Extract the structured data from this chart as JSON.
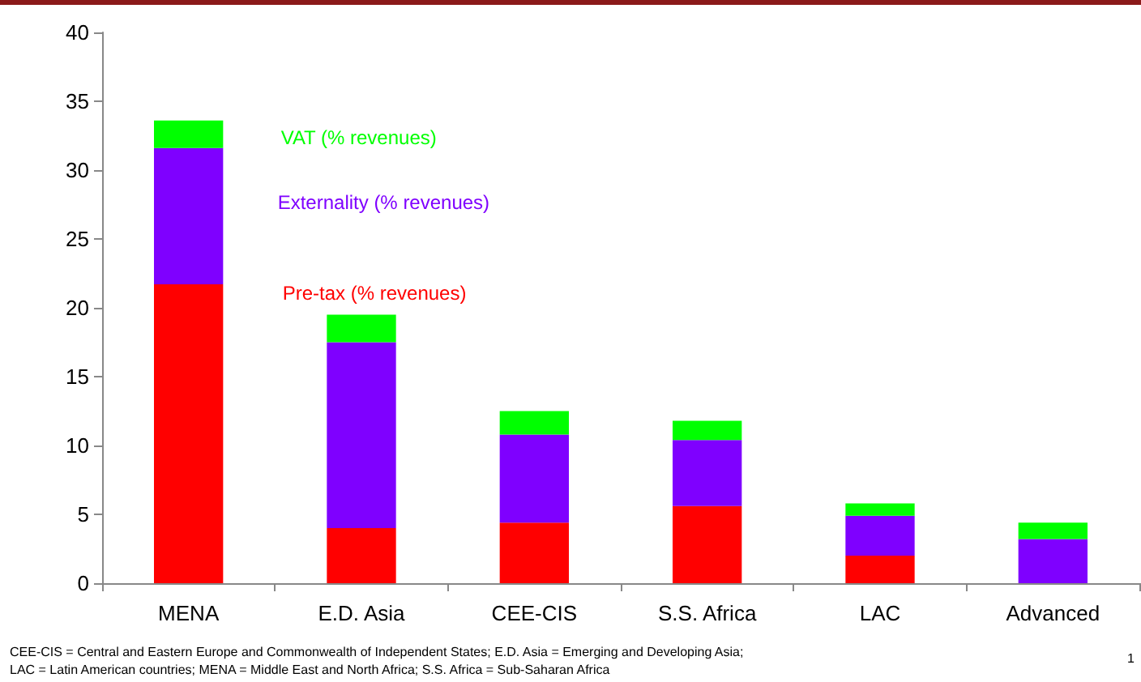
{
  "chart_data": {
    "type": "bar",
    "stacked": true,
    "categories": [
      "MENA",
      "E.D. Asia",
      "CEE-CIS",
      "S.S. Africa",
      "LAC",
      "Advanced"
    ],
    "series": [
      {
        "name": "Pre-tax (% revenues)",
        "color": "#ff0000",
        "values": [
          21.7,
          4.0,
          4.4,
          5.6,
          2.0,
          0
        ]
      },
      {
        "name": "Externality (% revenues)",
        "color": "#7f00ff",
        "values": [
          9.9,
          13.5,
          6.4,
          4.8,
          2.9,
          3.2
        ]
      },
      {
        "name": "VAT (% revenues)",
        "color": "#00ff00",
        "values": [
          2.0,
          2.0,
          1.7,
          1.4,
          0.9,
          1.2
        ]
      }
    ],
    "ylim": [
      0,
      40
    ],
    "yticks": [
      0,
      5,
      10,
      15,
      20,
      25,
      30,
      35,
      40
    ],
    "grid": false,
    "legend": false,
    "annotations": [
      "CEE-CIS = Central and Eastern Europe and Commonwealth of Independent States; E.D. Asia = Emerging and Developing Asia;\nLAC = Latin American countries; MENA = Middle East and North Africa; S.S. Africa = Sub-Saharan Africa",
      "1"
    ]
  }
}
